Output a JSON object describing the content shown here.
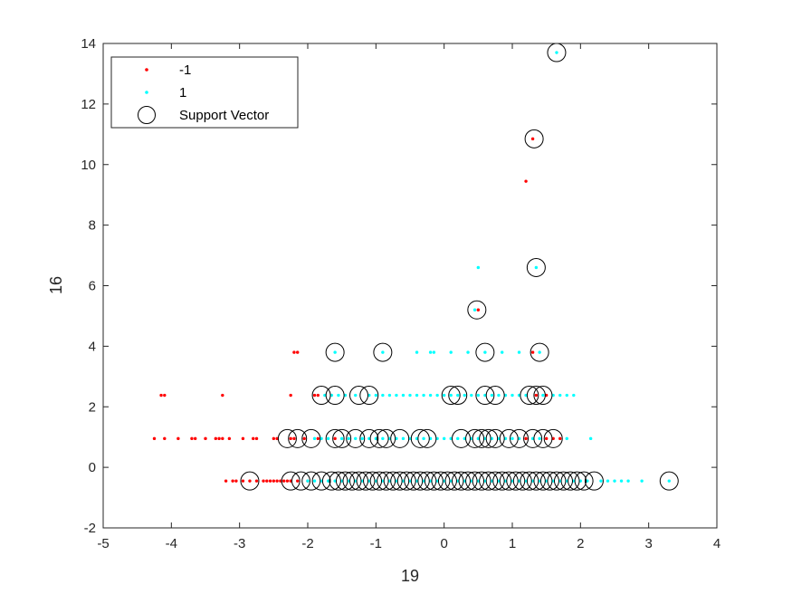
{
  "chart_data": {
    "type": "scatter",
    "title": "",
    "xlabel": "19",
    "ylabel": "16",
    "xlim": [
      -5,
      4
    ],
    "ylim": [
      -2,
      14
    ],
    "xticks": [
      -5,
      -4,
      -3,
      -2,
      -1,
      0,
      1,
      2,
      3,
      4
    ],
    "yticks": [
      -2,
      0,
      2,
      4,
      6,
      8,
      10,
      12,
      14
    ],
    "grid": false,
    "legend": {
      "placement": "top-left",
      "entries": [
        {
          "label": "-1",
          "marker": "dot",
          "color": "#ff0000"
        },
        {
          "label": "1",
          "marker": "dot",
          "color": "#00ffff"
        },
        {
          "label": "Support Vector",
          "marker": "circle",
          "color": "#000000"
        }
      ]
    },
    "series": [
      {
        "name": "-1",
        "color": "#ff0000",
        "points": [
          [
            -3.2,
            -0.45
          ],
          [
            -3.1,
            -0.45
          ],
          [
            -3.05,
            -0.45
          ],
          [
            -2.95,
            -0.45
          ],
          [
            -2.85,
            -0.45
          ],
          [
            -2.75,
            -0.45
          ],
          [
            -2.65,
            -0.45
          ],
          [
            -2.6,
            -0.45
          ],
          [
            -2.55,
            -0.45
          ],
          [
            -2.5,
            -0.45
          ],
          [
            -2.45,
            -0.45
          ],
          [
            -2.4,
            -0.45
          ],
          [
            -2.35,
            -0.45
          ],
          [
            -2.3,
            -0.45
          ],
          [
            -2.25,
            -0.45
          ],
          [
            -2.15,
            -0.45
          ],
          [
            -2.0,
            -0.45
          ],
          [
            -4.25,
            0.95
          ],
          [
            -4.1,
            0.95
          ],
          [
            -3.9,
            0.95
          ],
          [
            -3.7,
            0.95
          ],
          [
            -3.65,
            0.95
          ],
          [
            -3.5,
            0.95
          ],
          [
            -3.35,
            0.95
          ],
          [
            -3.3,
            0.95
          ],
          [
            -3.25,
            0.95
          ],
          [
            -3.15,
            0.95
          ],
          [
            -2.95,
            0.95
          ],
          [
            -2.8,
            0.95
          ],
          [
            -2.75,
            0.95
          ],
          [
            -2.5,
            0.95
          ],
          [
            -2.45,
            0.95
          ],
          [
            -2.25,
            0.95
          ],
          [
            -2.2,
            0.95
          ],
          [
            -2.05,
            0.95
          ],
          [
            -1.85,
            0.95
          ],
          [
            -1.6,
            0.95
          ],
          [
            1.2,
            0.95
          ],
          [
            1.5,
            0.95
          ],
          [
            1.6,
            0.95
          ],
          [
            1.7,
            0.95
          ],
          [
            -4.15,
            2.38
          ],
          [
            -4.1,
            2.38
          ],
          [
            -3.25,
            2.38
          ],
          [
            -2.25,
            2.38
          ],
          [
            -1.9,
            2.38
          ],
          [
            -1.85,
            2.38
          ],
          [
            1.35,
            2.38
          ],
          [
            1.5,
            2.38
          ],
          [
            -2.2,
            3.8
          ],
          [
            -2.15,
            3.8
          ],
          [
            1.3,
            3.8
          ],
          [
            0.5,
            5.2
          ],
          [
            1.3,
            10.85
          ],
          [
            1.2,
            9.45
          ]
        ]
      },
      {
        "name": "1",
        "color": "#00ffff",
        "points": [
          [
            -2.0,
            -0.45
          ],
          [
            -1.9,
            -0.45
          ],
          [
            -1.8,
            -0.45
          ],
          [
            -1.7,
            -0.45
          ],
          [
            -1.6,
            -0.45
          ],
          [
            -1.5,
            -0.45
          ],
          [
            -1.4,
            -0.45
          ],
          [
            -1.3,
            -0.45
          ],
          [
            -1.2,
            -0.45
          ],
          [
            -1.1,
            -0.45
          ],
          [
            -1.0,
            -0.45
          ],
          [
            -0.9,
            -0.45
          ],
          [
            -0.8,
            -0.45
          ],
          [
            -0.7,
            -0.45
          ],
          [
            -0.6,
            -0.45
          ],
          [
            -0.5,
            -0.45
          ],
          [
            -0.4,
            -0.45
          ],
          [
            -0.3,
            -0.45
          ],
          [
            -0.2,
            -0.45
          ],
          [
            -0.1,
            -0.45
          ],
          [
            0.0,
            -0.45
          ],
          [
            0.1,
            -0.45
          ],
          [
            0.2,
            -0.45
          ],
          [
            0.3,
            -0.45
          ],
          [
            0.4,
            -0.45
          ],
          [
            0.5,
            -0.45
          ],
          [
            0.6,
            -0.45
          ],
          [
            0.7,
            -0.45
          ],
          [
            0.8,
            -0.45
          ],
          [
            0.9,
            -0.45
          ],
          [
            1.0,
            -0.45
          ],
          [
            1.1,
            -0.45
          ],
          [
            1.2,
            -0.45
          ],
          [
            1.3,
            -0.45
          ],
          [
            1.4,
            -0.45
          ],
          [
            1.5,
            -0.45
          ],
          [
            1.6,
            -0.45
          ],
          [
            1.7,
            -0.45
          ],
          [
            1.8,
            -0.45
          ],
          [
            1.9,
            -0.45
          ],
          [
            2.0,
            -0.45
          ],
          [
            2.1,
            -0.45
          ],
          [
            2.3,
            -0.45
          ],
          [
            2.4,
            -0.45
          ],
          [
            2.5,
            -0.45
          ],
          [
            2.6,
            -0.45
          ],
          [
            2.7,
            -0.45
          ],
          [
            2.9,
            -0.45
          ],
          [
            3.3,
            -0.45
          ],
          [
            -1.9,
            0.95
          ],
          [
            -1.8,
            0.95
          ],
          [
            -1.7,
            0.95
          ],
          [
            -1.5,
            0.95
          ],
          [
            -1.4,
            0.95
          ],
          [
            -1.3,
            0.95
          ],
          [
            -1.2,
            0.95
          ],
          [
            -1.1,
            0.95
          ],
          [
            -1.0,
            0.95
          ],
          [
            -0.9,
            0.95
          ],
          [
            -0.8,
            0.95
          ],
          [
            -0.7,
            0.95
          ],
          [
            -0.6,
            0.95
          ],
          [
            -0.5,
            0.95
          ],
          [
            -0.4,
            0.95
          ],
          [
            -0.3,
            0.95
          ],
          [
            -0.2,
            0.95
          ],
          [
            -0.1,
            0.95
          ],
          [
            0.0,
            0.95
          ],
          [
            0.1,
            0.95
          ],
          [
            0.2,
            0.95
          ],
          [
            0.3,
            0.95
          ],
          [
            0.4,
            0.95
          ],
          [
            0.5,
            0.95
          ],
          [
            0.6,
            0.95
          ],
          [
            0.7,
            0.95
          ],
          [
            0.8,
            0.95
          ],
          [
            0.9,
            0.95
          ],
          [
            1.0,
            0.95
          ],
          [
            1.1,
            0.95
          ],
          [
            1.3,
            0.95
          ],
          [
            1.4,
            0.95
          ],
          [
            1.8,
            0.95
          ],
          [
            2.15,
            0.95
          ],
          [
            -1.75,
            2.38
          ],
          [
            -1.65,
            2.38
          ],
          [
            -1.55,
            2.38
          ],
          [
            -1.45,
            2.38
          ],
          [
            -1.3,
            2.38
          ],
          [
            -1.1,
            2.38
          ],
          [
            -1.0,
            2.38
          ],
          [
            -0.9,
            2.38
          ],
          [
            -0.8,
            2.38
          ],
          [
            -0.7,
            2.38
          ],
          [
            -0.6,
            2.38
          ],
          [
            -0.5,
            2.38
          ],
          [
            -0.4,
            2.38
          ],
          [
            -0.3,
            2.38
          ],
          [
            -0.2,
            2.38
          ],
          [
            -0.1,
            2.38
          ],
          [
            0.0,
            2.38
          ],
          [
            0.1,
            2.38
          ],
          [
            0.2,
            2.38
          ],
          [
            0.3,
            2.38
          ],
          [
            0.4,
            2.38
          ],
          [
            0.5,
            2.38
          ],
          [
            0.6,
            2.38
          ],
          [
            0.7,
            2.38
          ],
          [
            0.8,
            2.38
          ],
          [
            0.9,
            2.38
          ],
          [
            1.0,
            2.38
          ],
          [
            1.1,
            2.38
          ],
          [
            1.2,
            2.38
          ],
          [
            1.45,
            2.38
          ],
          [
            1.6,
            2.38
          ],
          [
            1.7,
            2.38
          ],
          [
            1.8,
            2.38
          ],
          [
            1.9,
            2.38
          ],
          [
            -1.6,
            3.8
          ],
          [
            -0.9,
            3.8
          ],
          [
            -0.4,
            3.8
          ],
          [
            -0.2,
            3.8
          ],
          [
            -0.15,
            3.8
          ],
          [
            0.1,
            3.8
          ],
          [
            0.35,
            3.8
          ],
          [
            0.6,
            3.8
          ],
          [
            0.85,
            3.8
          ],
          [
            1.1,
            3.8
          ],
          [
            1.4,
            3.8
          ],
          [
            0.45,
            5.2
          ],
          [
            0.5,
            6.6
          ],
          [
            1.35,
            6.6
          ],
          [
            1.65,
            13.7
          ]
        ]
      }
    ],
    "support_vectors": [
      [
        -2.85,
        -0.45
      ],
      [
        -2.25,
        -0.45
      ],
      [
        -2.1,
        -0.45
      ],
      [
        -1.95,
        -0.45
      ],
      [
        -1.8,
        -0.45
      ],
      [
        -1.65,
        -0.45
      ],
      [
        -1.55,
        -0.45
      ],
      [
        -1.45,
        -0.45
      ],
      [
        -1.35,
        -0.45
      ],
      [
        -1.25,
        -0.45
      ],
      [
        -1.15,
        -0.45
      ],
      [
        -1.05,
        -0.45
      ],
      [
        -0.95,
        -0.45
      ],
      [
        -0.85,
        -0.45
      ],
      [
        -0.75,
        -0.45
      ],
      [
        -0.65,
        -0.45
      ],
      [
        -0.55,
        -0.45
      ],
      [
        -0.45,
        -0.45
      ],
      [
        -0.35,
        -0.45
      ],
      [
        -0.25,
        -0.45
      ],
      [
        -0.15,
        -0.45
      ],
      [
        -0.05,
        -0.45
      ],
      [
        0.05,
        -0.45
      ],
      [
        0.15,
        -0.45
      ],
      [
        0.25,
        -0.45
      ],
      [
        0.35,
        -0.45
      ],
      [
        0.45,
        -0.45
      ],
      [
        0.55,
        -0.45
      ],
      [
        0.65,
        -0.45
      ],
      [
        0.75,
        -0.45
      ],
      [
        0.85,
        -0.45
      ],
      [
        0.95,
        -0.45
      ],
      [
        1.05,
        -0.45
      ],
      [
        1.15,
        -0.45
      ],
      [
        1.25,
        -0.45
      ],
      [
        1.35,
        -0.45
      ],
      [
        1.45,
        -0.45
      ],
      [
        1.55,
        -0.45
      ],
      [
        1.65,
        -0.45
      ],
      [
        1.75,
        -0.45
      ],
      [
        1.85,
        -0.45
      ],
      [
        1.95,
        -0.45
      ],
      [
        2.05,
        -0.45
      ],
      [
        2.2,
        -0.45
      ],
      [
        3.3,
        -0.45
      ],
      [
        -2.3,
        0.95
      ],
      [
        -2.15,
        0.95
      ],
      [
        -1.95,
        0.95
      ],
      [
        -1.6,
        0.95
      ],
      [
        -1.5,
        0.95
      ],
      [
        -1.3,
        0.95
      ],
      [
        -1.1,
        0.95
      ],
      [
        -0.95,
        0.95
      ],
      [
        -0.85,
        0.95
      ],
      [
        -0.65,
        0.95
      ],
      [
        -0.35,
        0.95
      ],
      [
        -0.25,
        0.95
      ],
      [
        0.25,
        0.95
      ],
      [
        0.45,
        0.95
      ],
      [
        0.55,
        0.95
      ],
      [
        0.65,
        0.95
      ],
      [
        0.75,
        0.95
      ],
      [
        0.95,
        0.95
      ],
      [
        1.1,
        0.95
      ],
      [
        1.3,
        0.95
      ],
      [
        1.45,
        0.95
      ],
      [
        1.6,
        0.95
      ],
      [
        -1.8,
        2.38
      ],
      [
        -1.6,
        2.38
      ],
      [
        -1.25,
        2.38
      ],
      [
        -1.1,
        2.38
      ],
      [
        0.1,
        2.38
      ],
      [
        0.2,
        2.38
      ],
      [
        0.6,
        2.38
      ],
      [
        0.75,
        2.38
      ],
      [
        1.25,
        2.38
      ],
      [
        1.35,
        2.38
      ],
      [
        1.45,
        2.38
      ],
      [
        -1.6,
        3.8
      ],
      [
        -0.9,
        3.8
      ],
      [
        0.6,
        3.8
      ],
      [
        1.4,
        3.8
      ],
      [
        0.48,
        5.2
      ],
      [
        1.35,
        6.6
      ],
      [
        1.32,
        10.85
      ],
      [
        1.65,
        13.7
      ]
    ]
  }
}
